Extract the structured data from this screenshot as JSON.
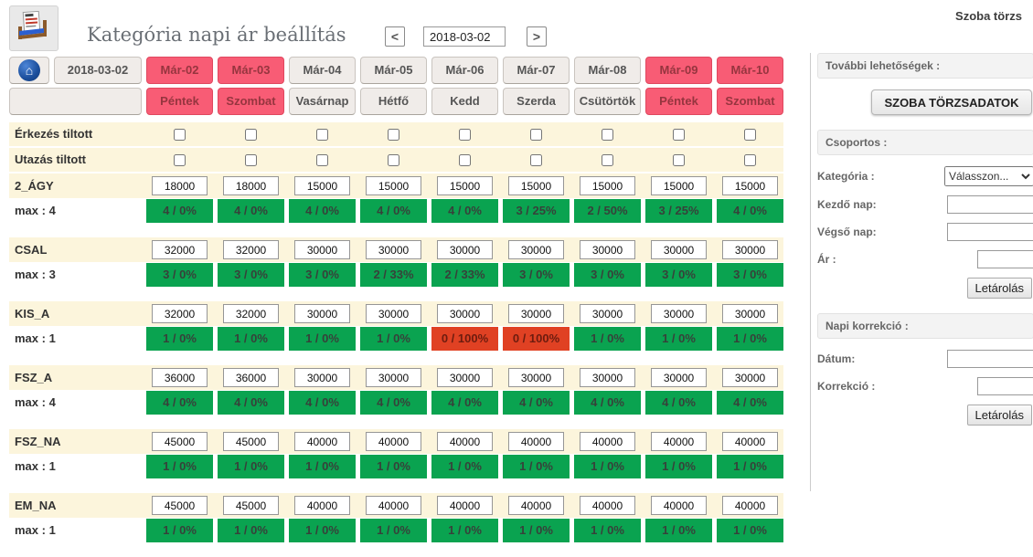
{
  "header": {
    "title": "Kategória napi ár beállítás",
    "top_link": "Szoba törzs",
    "date_value": "2018-03-02",
    "prev_icon": "<",
    "next_icon": ">"
  },
  "table": {
    "date_button": "2018-03-02",
    "home_icon": "⌂",
    "columns": [
      {
        "date": "Már-02",
        "day": "Péntek",
        "weekend": true
      },
      {
        "date": "Már-03",
        "day": "Szombat",
        "weekend": true
      },
      {
        "date": "Már-04",
        "day": "Vasárnap",
        "weekend": false
      },
      {
        "date": "Már-05",
        "day": "Hétfő",
        "weekend": false
      },
      {
        "date": "Már-06",
        "day": "Kedd",
        "weekend": false
      },
      {
        "date": "Már-07",
        "day": "Szerda",
        "weekend": false
      },
      {
        "date": "Már-08",
        "day": "Csütörtök",
        "weekend": false
      },
      {
        "date": "Már-09",
        "day": "Péntek",
        "weekend": true
      },
      {
        "date": "Már-10",
        "day": "Szombat",
        "weekend": true
      }
    ],
    "restrictions": [
      "Érkezés tiltott",
      "Utazás tiltott"
    ],
    "categories": [
      {
        "name": "2_ÁGY",
        "max_label": "max : 4",
        "prices": [
          "18000",
          "18000",
          "15000",
          "15000",
          "15000",
          "15000",
          "15000",
          "15000",
          "15000"
        ],
        "stats": [
          {
            "text": "4 / 0%",
            "state": "ok"
          },
          {
            "text": "4 / 0%",
            "state": "ok"
          },
          {
            "text": "4 / 0%",
            "state": "ok"
          },
          {
            "text": "4 / 0%",
            "state": "ok"
          },
          {
            "text": "4 / 0%",
            "state": "ok"
          },
          {
            "text": "3 / 25%",
            "state": "ok"
          },
          {
            "text": "2 / 50%",
            "state": "ok"
          },
          {
            "text": "3 / 25%",
            "state": "ok"
          },
          {
            "text": "4 / 0%",
            "state": "ok"
          }
        ]
      },
      {
        "name": "CSAL",
        "max_label": "max : 3",
        "prices": [
          "32000",
          "32000",
          "30000",
          "30000",
          "30000",
          "30000",
          "30000",
          "30000",
          "30000"
        ],
        "stats": [
          {
            "text": "3 / 0%",
            "state": "ok"
          },
          {
            "text": "3 / 0%",
            "state": "ok"
          },
          {
            "text": "3 / 0%",
            "state": "ok"
          },
          {
            "text": "2 / 33%",
            "state": "ok"
          },
          {
            "text": "2 / 33%",
            "state": "ok"
          },
          {
            "text": "3 / 0%",
            "state": "ok"
          },
          {
            "text": "3 / 0%",
            "state": "ok"
          },
          {
            "text": "3 / 0%",
            "state": "ok"
          },
          {
            "text": "3 / 0%",
            "state": "ok"
          }
        ]
      },
      {
        "name": "KIS_A",
        "max_label": "max : 1",
        "prices": [
          "32000",
          "32000",
          "30000",
          "30000",
          "30000",
          "30000",
          "30000",
          "30000",
          "30000"
        ],
        "stats": [
          {
            "text": "1 / 0%",
            "state": "ok"
          },
          {
            "text": "1 / 0%",
            "state": "ok"
          },
          {
            "text": "1 / 0%",
            "state": "ok"
          },
          {
            "text": "1 / 0%",
            "state": "ok"
          },
          {
            "text": "0 / 100%",
            "state": "full"
          },
          {
            "text": "0 / 100%",
            "state": "full"
          },
          {
            "text": "1 / 0%",
            "state": "ok"
          },
          {
            "text": "1 / 0%",
            "state": "ok"
          },
          {
            "text": "1 / 0%",
            "state": "ok"
          }
        ]
      },
      {
        "name": "FSZ_A",
        "max_label": "max : 4",
        "prices": [
          "36000",
          "36000",
          "30000",
          "30000",
          "30000",
          "30000",
          "30000",
          "30000",
          "30000"
        ],
        "stats": [
          {
            "text": "4 / 0%",
            "state": "ok"
          },
          {
            "text": "4 / 0%",
            "state": "ok"
          },
          {
            "text": "4 / 0%",
            "state": "ok"
          },
          {
            "text": "4 / 0%",
            "state": "ok"
          },
          {
            "text": "4 / 0%",
            "state": "ok"
          },
          {
            "text": "4 / 0%",
            "state": "ok"
          },
          {
            "text": "4 / 0%",
            "state": "ok"
          },
          {
            "text": "4 / 0%",
            "state": "ok"
          },
          {
            "text": "4 / 0%",
            "state": "ok"
          }
        ]
      },
      {
        "name": "FSZ_NA",
        "max_label": "max : 1",
        "prices": [
          "45000",
          "45000",
          "40000",
          "40000",
          "40000",
          "40000",
          "40000",
          "40000",
          "40000"
        ],
        "stats": [
          {
            "text": "1 / 0%",
            "state": "ok"
          },
          {
            "text": "1 / 0%",
            "state": "ok"
          },
          {
            "text": "1 / 0%",
            "state": "ok"
          },
          {
            "text": "1 / 0%",
            "state": "ok"
          },
          {
            "text": "1 / 0%",
            "state": "ok"
          },
          {
            "text": "1 / 0%",
            "state": "ok"
          },
          {
            "text": "1 / 0%",
            "state": "ok"
          },
          {
            "text": "1 / 0%",
            "state": "ok"
          },
          {
            "text": "1 / 0%",
            "state": "ok"
          }
        ]
      },
      {
        "name": "EM_NA",
        "max_label": "max : 1",
        "prices": [
          "45000",
          "45000",
          "40000",
          "40000",
          "40000",
          "40000",
          "40000",
          "40000",
          "40000"
        ],
        "stats": [
          {
            "text": "1 / 0%",
            "state": "ok"
          },
          {
            "text": "1 / 0%",
            "state": "ok"
          },
          {
            "text": "1 / 0%",
            "state": "ok"
          },
          {
            "text": "1 / 0%",
            "state": "ok"
          },
          {
            "text": "1 / 0%",
            "state": "ok"
          },
          {
            "text": "1 / 0%",
            "state": "ok"
          },
          {
            "text": "1 / 0%",
            "state": "ok"
          },
          {
            "text": "1 / 0%",
            "state": "ok"
          },
          {
            "text": "1 / 0%",
            "state": "ok"
          }
        ]
      }
    ]
  },
  "sidebar": {
    "more_header": "További lehetőségek :",
    "master_button": "SZOBA TÖRZSADATOK",
    "group_header": "Csoportos :",
    "category_label": "Kategória :",
    "category_value": "Válasszon...",
    "start_label": "Kezdő nap:",
    "end_label": "Végső nap:",
    "price_label": "Ár :",
    "save_button": "Letárolás",
    "daily_header": "Napi korrekció :",
    "date_label": "Dátum:",
    "correction_label": "Korrekció :",
    "save_button2": "Letárolás"
  },
  "colors": {
    "weekend_pink": "#f85c75",
    "ok_green": "#0aa350",
    "full_red": "#e04123",
    "row_cream": "#fcf5dc"
  }
}
